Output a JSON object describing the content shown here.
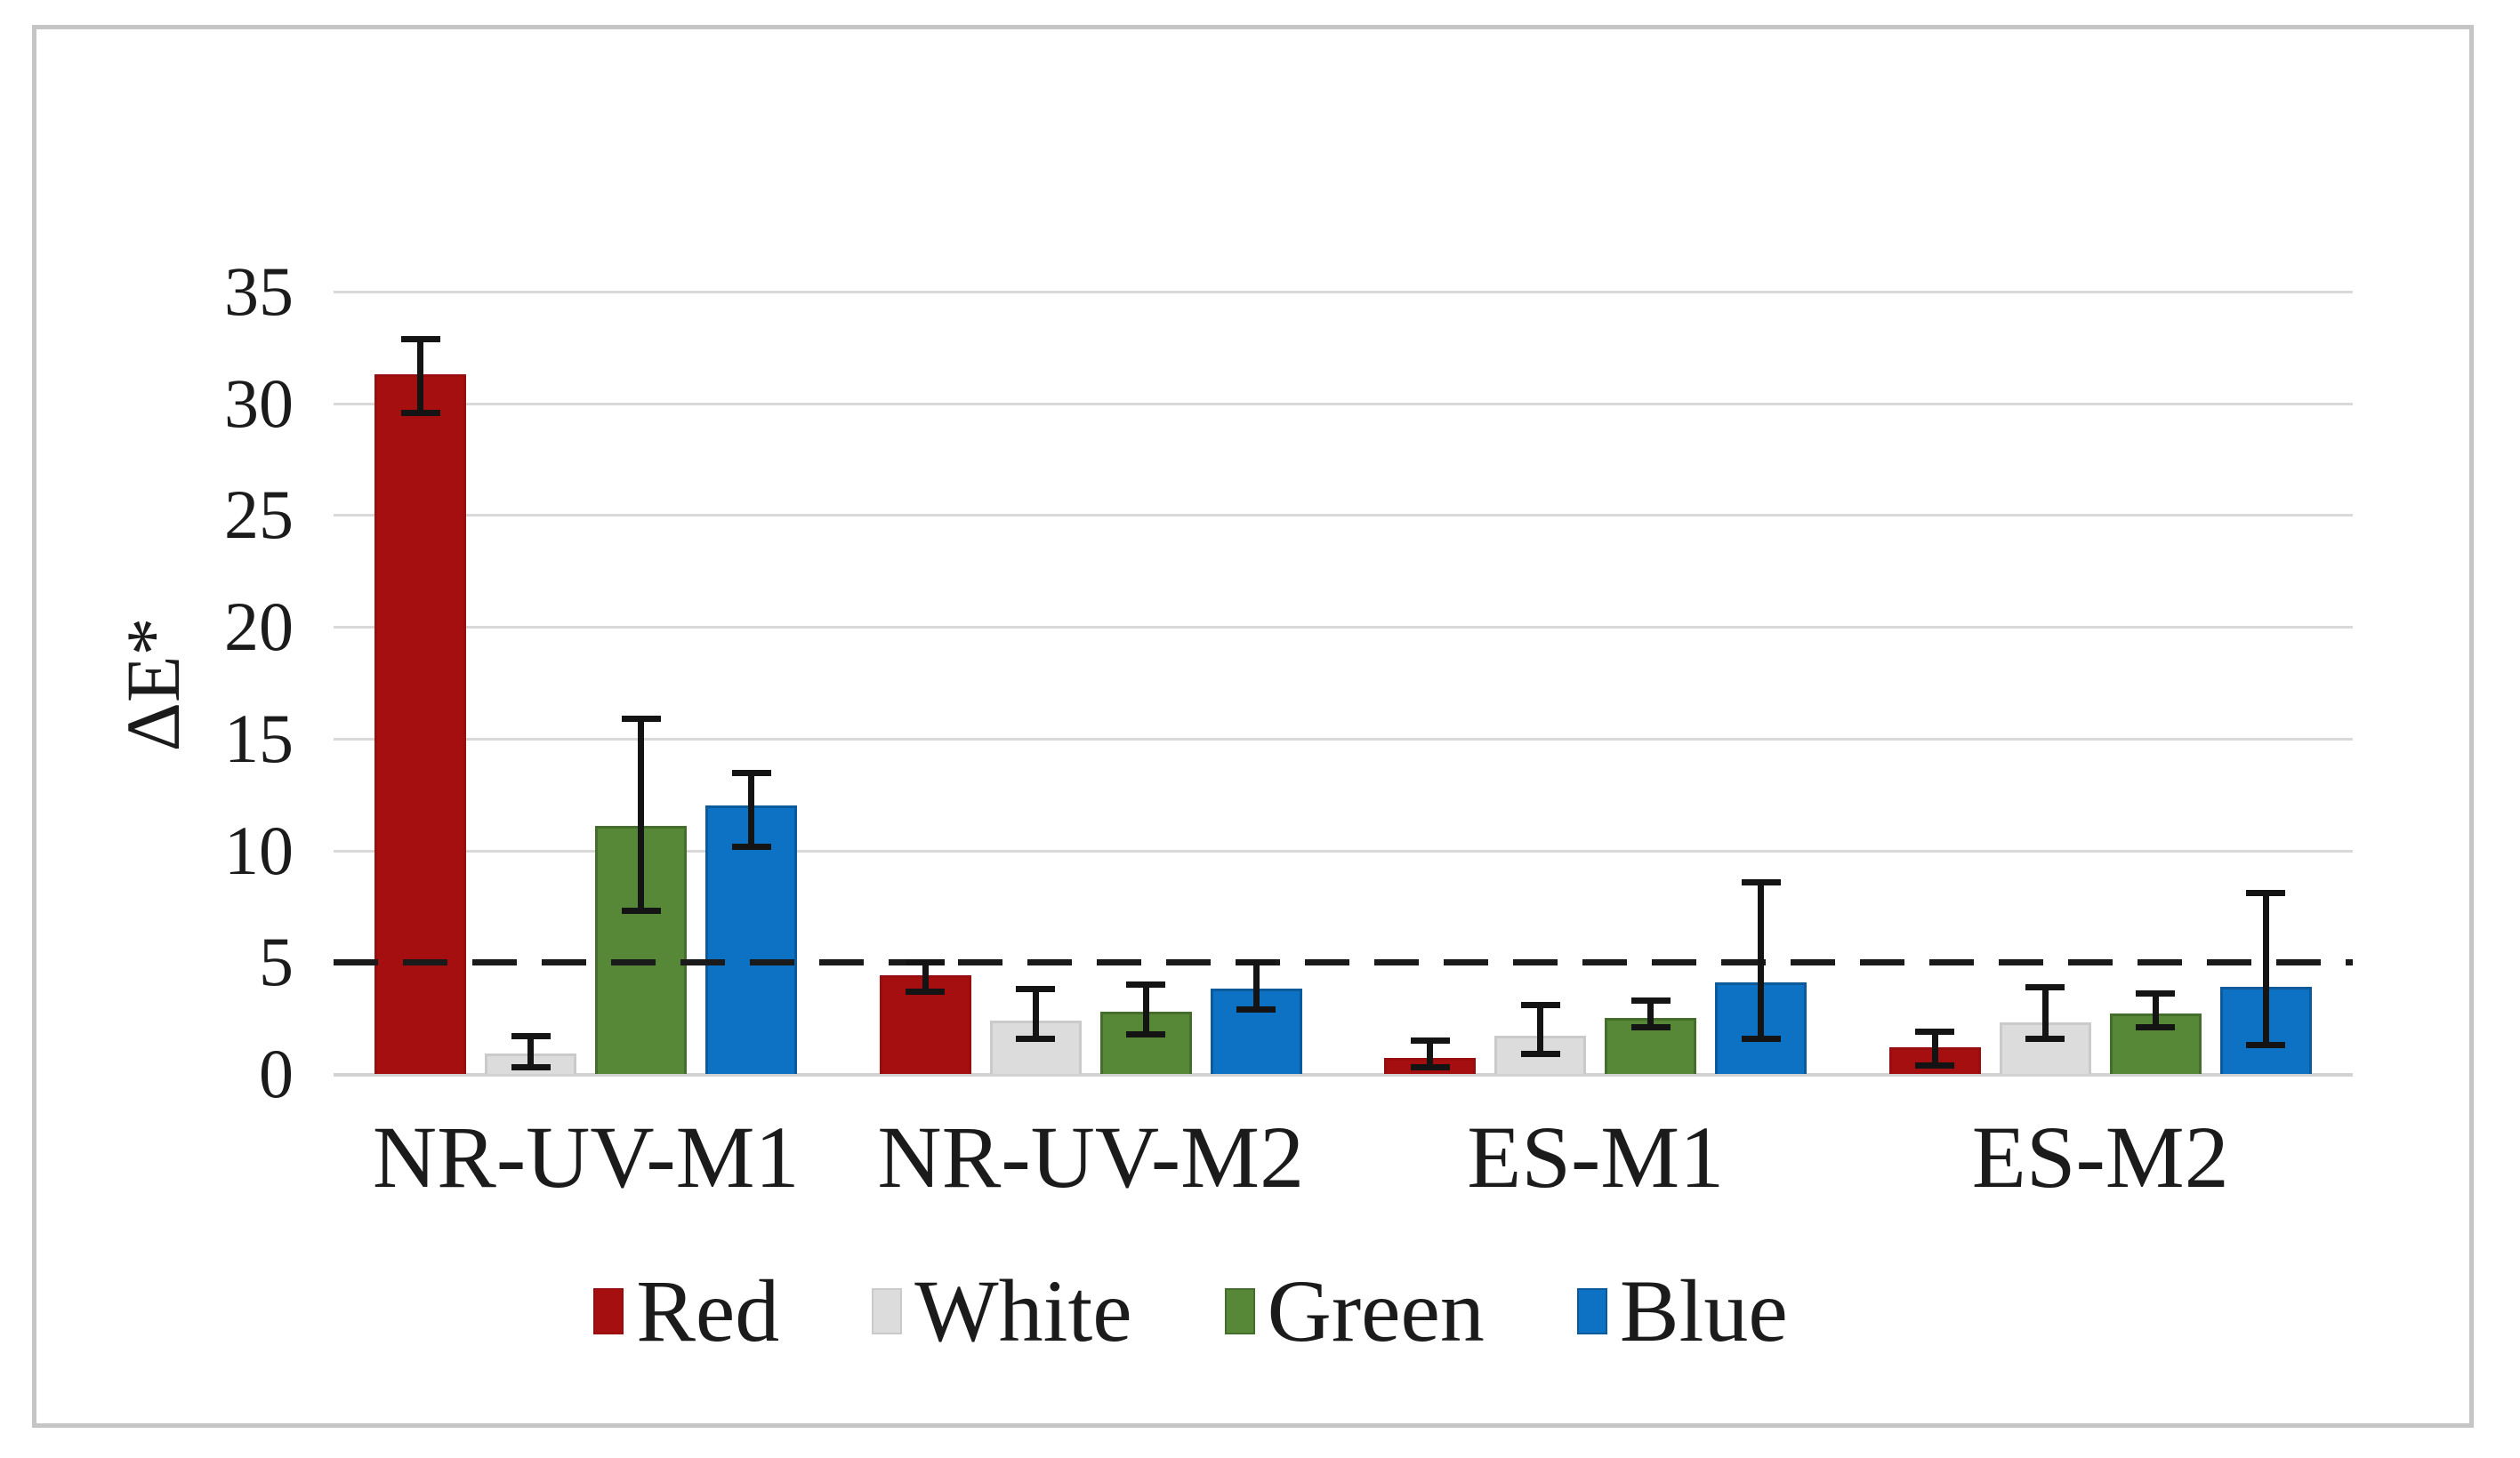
{
  "chart_data": {
    "type": "bar",
    "title": "",
    "xlabel": "",
    "ylabel": "ΔE*",
    "ylim": [
      0,
      35
    ],
    "yticks": [
      0,
      5,
      10,
      15,
      20,
      25,
      30,
      35
    ],
    "grid": "horizontal-light-gray",
    "legend_position": "bottom-center",
    "threshold_line": {
      "y": 5,
      "style": "dashed",
      "color": "#1a1a1a"
    },
    "error_bar_color": "#141414",
    "categories": [
      "NR-UV-M1",
      "NR-UV-M2",
      "ES-M1",
      "ES-M2"
    ],
    "series": [
      {
        "name": "Red",
        "color": "#a50f10",
        "border_color": "#9a0d0e",
        "values": [
          31.3,
          4.4,
          0.7,
          1.2
        ],
        "error_low": [
          29.6,
          3.7,
          0.3,
          0.4
        ],
        "error_high": [
          32.9,
          5.0,
          1.5,
          1.9
        ]
      },
      {
        "name": "White",
        "color": "#dcdcdc",
        "border_color": "#cacaca",
        "values": [
          0.9,
          2.4,
          1.7,
          2.3
        ],
        "error_low": [
          0.3,
          1.6,
          0.9,
          1.6
        ],
        "error_high": [
          1.7,
          3.8,
          3.1,
          3.9
        ]
      },
      {
        "name": "Green",
        "color": "#578837",
        "border_color": "#456d2b",
        "values": [
          11.1,
          2.8,
          2.5,
          2.7
        ],
        "error_low": [
          7.3,
          1.8,
          2.1,
          2.1
        ],
        "error_high": [
          15.9,
          4.0,
          3.3,
          3.6
        ]
      },
      {
        "name": "Blue",
        "color": "#0d72c4",
        "border_color": "#0a5a9c",
        "values": [
          12.0,
          3.8,
          4.1,
          3.9
        ],
        "error_low": [
          10.2,
          2.9,
          1.6,
          1.3
        ],
        "error_high": [
          13.5,
          5.0,
          8.6,
          8.1
        ]
      }
    ]
  }
}
